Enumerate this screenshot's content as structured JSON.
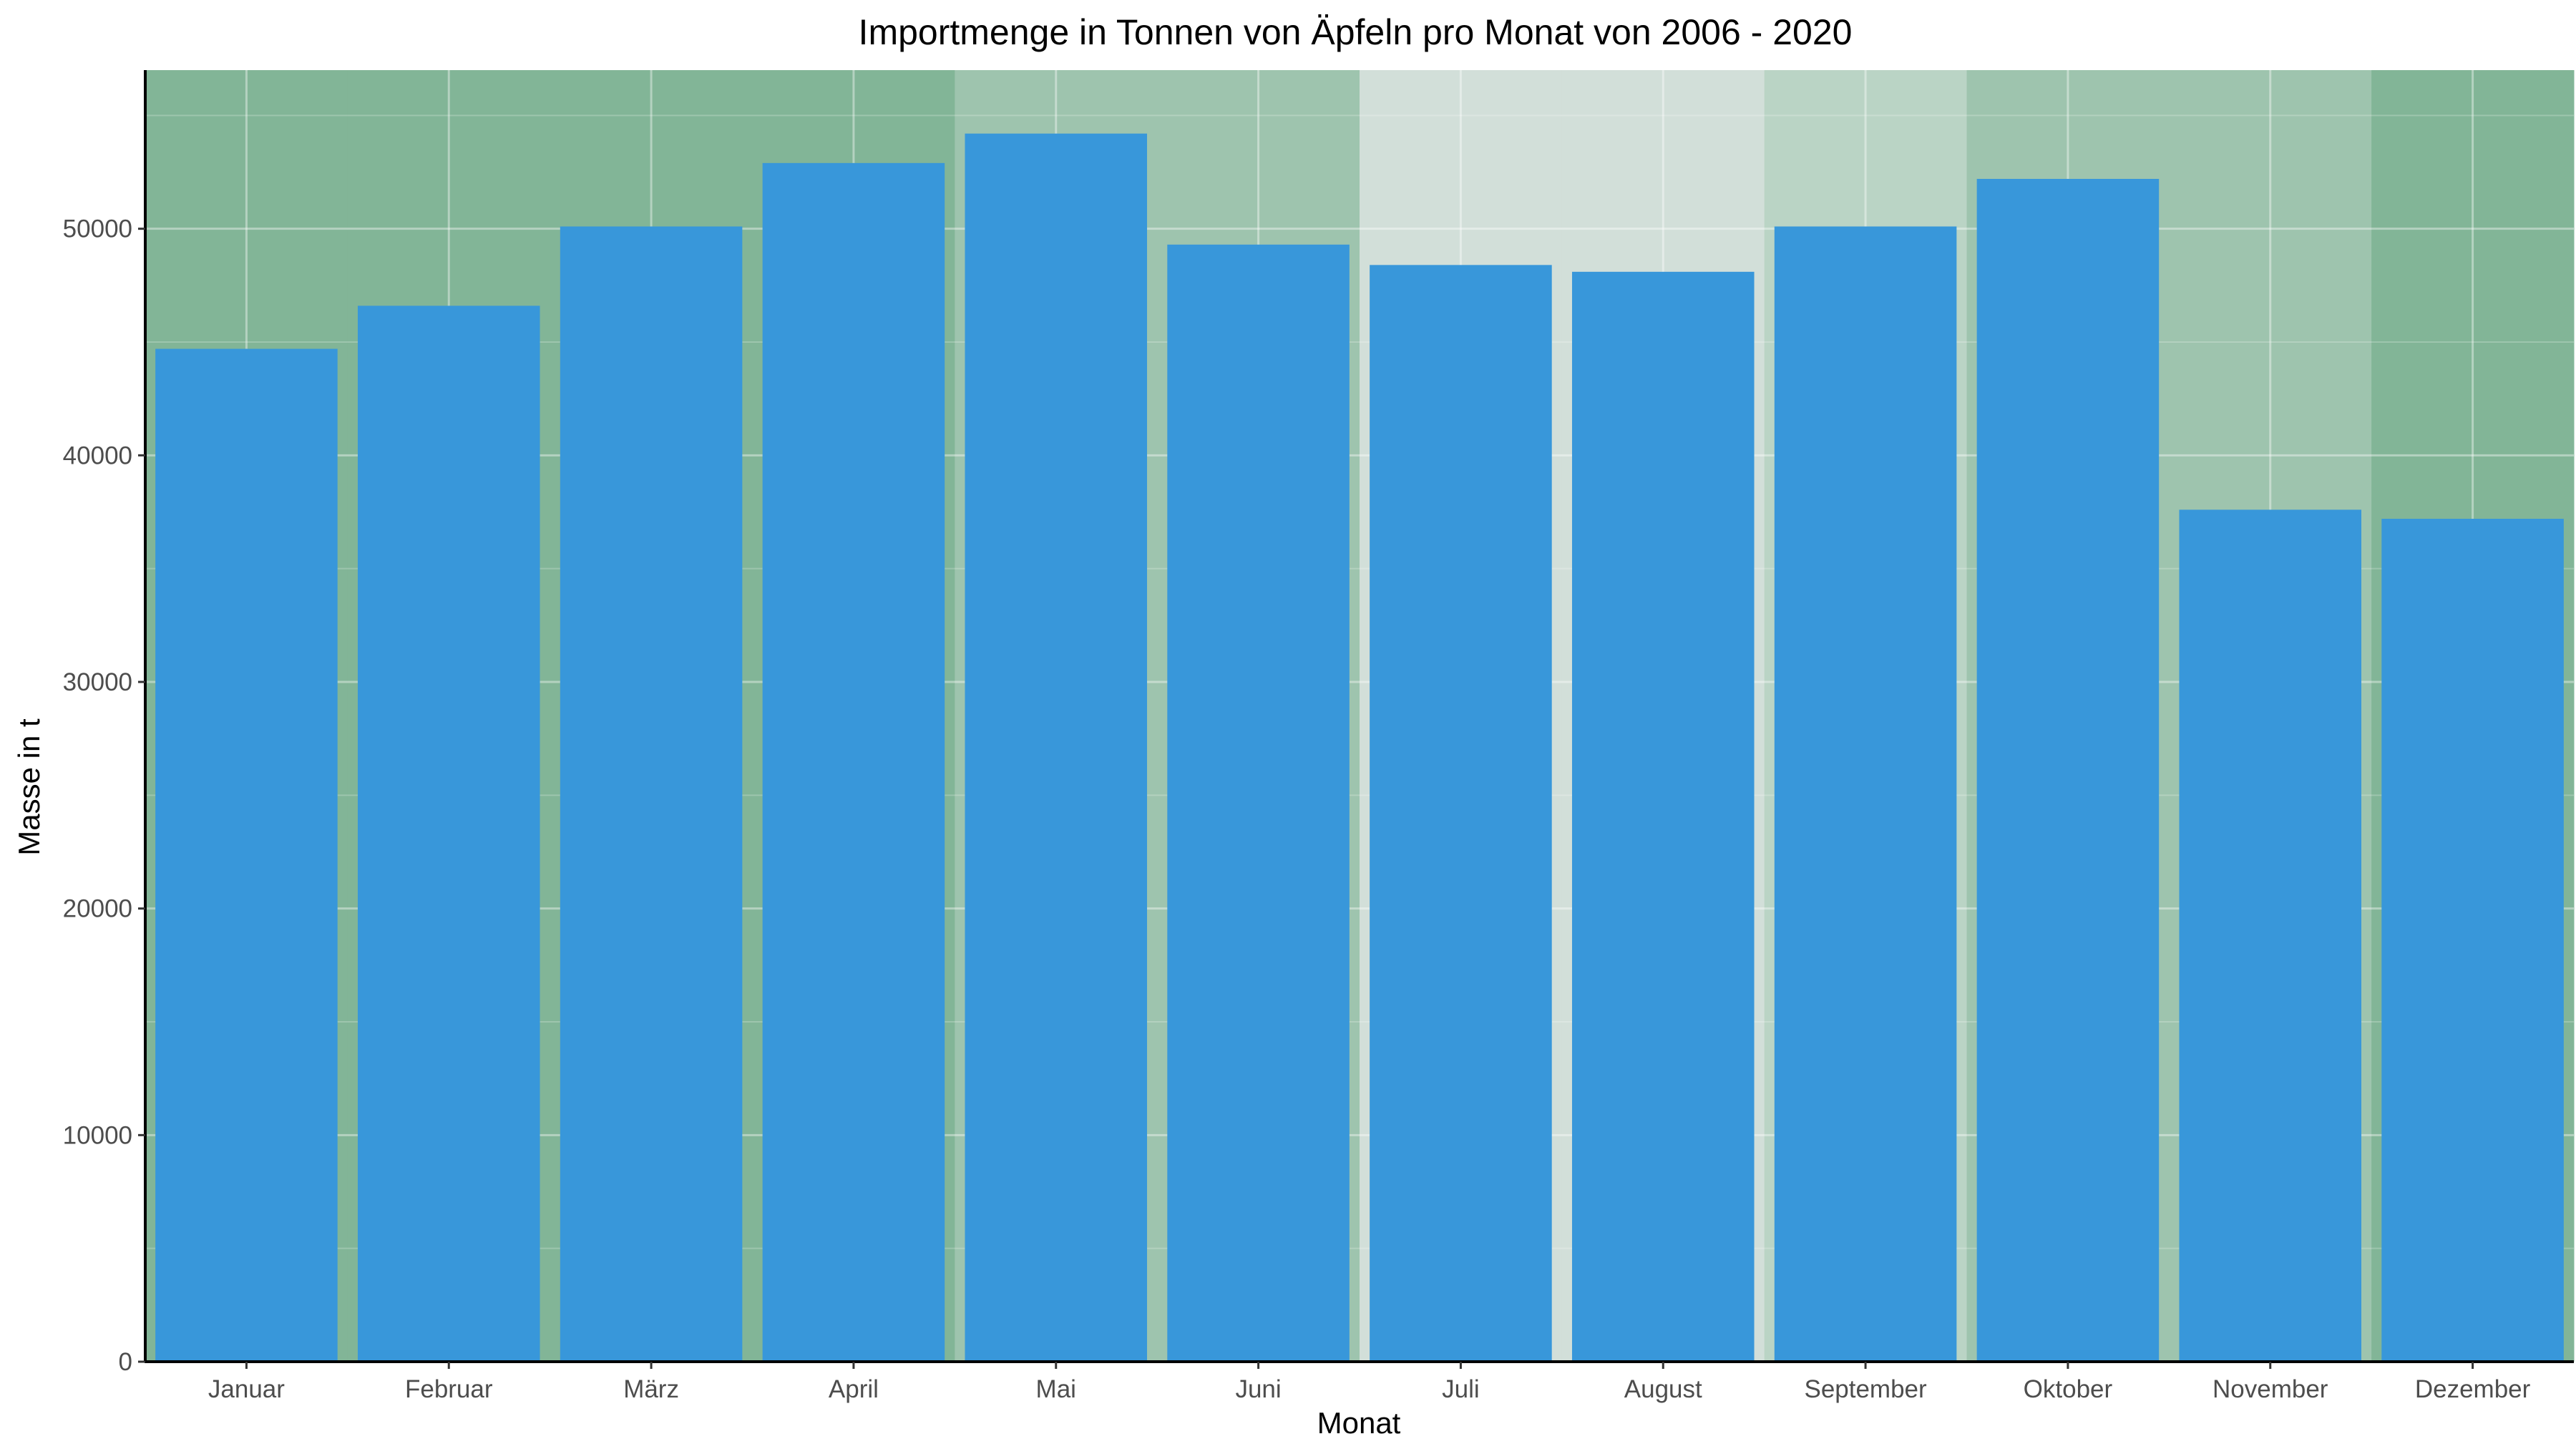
{
  "chart_data": {
    "type": "bar",
    "title": "Importmenge in Tonnen von Äpfeln pro Monat von 2006 - 2020",
    "xlabel": "Monat",
    "ylabel": "Masse in t",
    "categories": [
      "Januar",
      "Februar",
      "März",
      "April",
      "Mai",
      "Juni",
      "Juli",
      "August",
      "September",
      "Oktober",
      "November",
      "Dezember"
    ],
    "values": [
      44700,
      46600,
      50100,
      52900,
      54200,
      49300,
      48400,
      48100,
      50100,
      52200,
      37600,
      37200
    ],
    "ylim": [
      0,
      57000
    ],
    "yticks": [
      0,
      10000,
      20000,
      30000,
      40000,
      50000
    ],
    "grid": true,
    "legend": "none",
    "bar_color": "#3897da",
    "month_background_colors": [
      "#82b597",
      "#82b597",
      "#82b597",
      "#82b597",
      "#9ec4ae",
      "#9ec4ae",
      "#d2dfd9",
      "#d2dfd9",
      "#bad4c5",
      "#9ec4ae",
      "#9ec4ae",
      "#82b597"
    ]
  }
}
